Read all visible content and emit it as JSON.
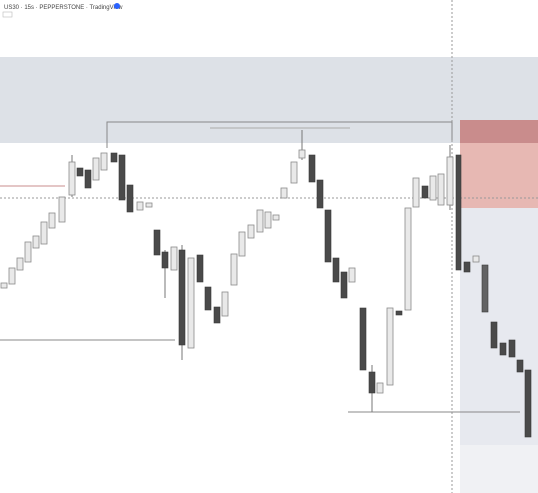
{
  "header": {
    "title": "US30 · 15s · PEPPERSTONE · TradingView"
  }
}
